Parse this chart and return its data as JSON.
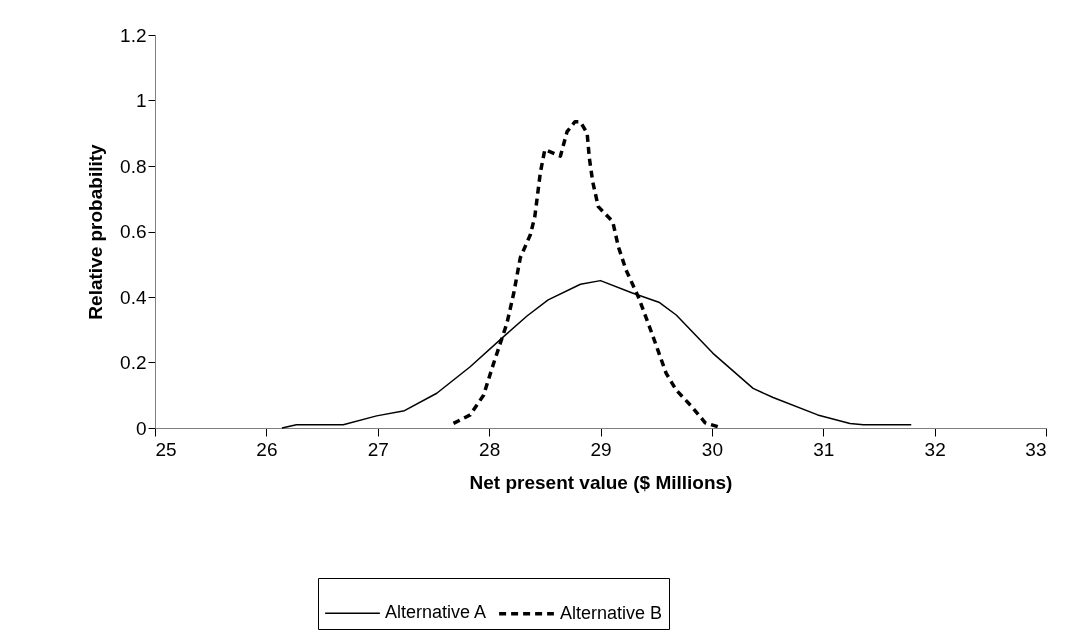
{
  "chart_data": {
    "type": "line",
    "xlabel": "Net present value ($ Millions)",
    "ylabel": "Relative probability",
    "xlim": [
      25,
      33
    ],
    "xticks": [
      25,
      26,
      27,
      28,
      29,
      30,
      31,
      32,
      33
    ],
    "ylim": [
      0,
      1.2
    ],
    "yticks": [
      0,
      0.2,
      0.4,
      0.6,
      0.8,
      1,
      1.2
    ],
    "grid": false,
    "legend": "bottom",
    "marker": "none",
    "series": [
      {
        "name": "Alternative A",
        "color": "#000000",
        "line_style": "solid",
        "x": [
          26.14,
          26.27,
          26.69,
          26.99,
          27.24,
          27.53,
          27.83,
          28.13,
          28.34,
          28.53,
          28.82,
          29.0,
          29.28,
          29.53,
          29.68,
          30.01,
          30.37,
          30.55,
          30.95,
          31.24,
          31.36,
          31.79
        ],
        "values": [
          0,
          0.01,
          0.01,
          0.037,
          0.053,
          0.106,
          0.187,
          0.279,
          0.342,
          0.391,
          0.439,
          0.45,
          0.413,
          0.383,
          0.345,
          0.228,
          0.121,
          0.093,
          0.04,
          0.014,
          0.01,
          0.01
        ]
      },
      {
        "name": "Alternative B",
        "color": "#000000",
        "line_style": "dashed",
        "x": [
          27.68,
          27.83,
          27.95,
          28.04,
          28.16,
          28.22,
          28.28,
          28.37,
          28.41,
          28.46,
          28.5,
          28.64,
          28.7,
          28.77,
          28.82,
          28.88,
          28.9,
          28.93,
          28.98,
          29.11,
          29.16,
          29.23,
          29.34,
          29.44,
          29.52,
          29.59,
          29.68,
          29.82,
          29.94,
          30.09
        ],
        "values": [
          0.014,
          0.04,
          0.1,
          0.197,
          0.32,
          0.41,
          0.52,
          0.59,
          0.645,
          0.78,
          0.85,
          0.83,
          0.905,
          0.935,
          0.935,
          0.9,
          0.824,
          0.752,
          0.676,
          0.63,
          0.554,
          0.482,
          0.4,
          0.309,
          0.233,
          0.167,
          0.116,
          0.065,
          0.016,
          0
        ]
      }
    ]
  }
}
